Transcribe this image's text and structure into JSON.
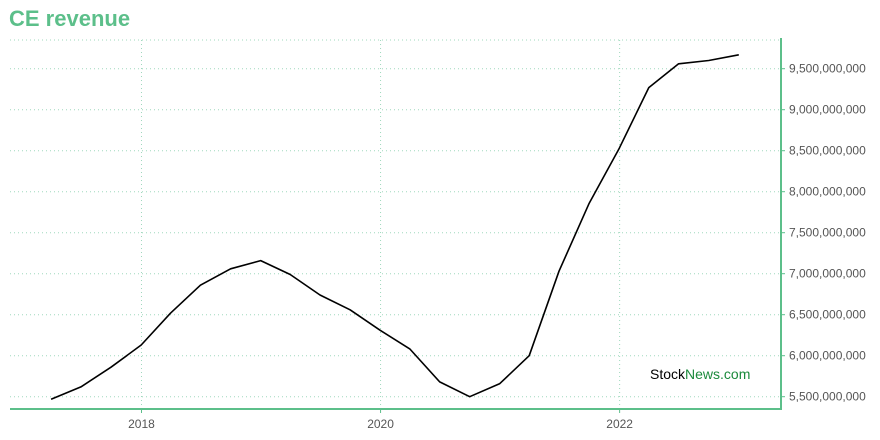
{
  "title": "CE revenue",
  "watermark": {
    "part1": "Stock",
    "part2": "News",
    "part3": ".com"
  },
  "colors": {
    "accent": "#5cbf8a",
    "line": "#000000",
    "grid": "#9fd8bd",
    "watermark_green": "#1b8a3c"
  },
  "chart_data": {
    "type": "line",
    "title": "CE revenue",
    "xlabel": "",
    "ylabel": "",
    "xlim": [
      2016.9,
      2023.35
    ],
    "ylim": [
      5350000000,
      9850000000
    ],
    "x_ticks": [
      2018,
      2020,
      2022
    ],
    "x_tick_labels": [
      "2018",
      "2020",
      "2022"
    ],
    "y_ticks": [
      5500000000,
      6000000000,
      6500000000,
      7000000000,
      7500000000,
      8000000000,
      8500000000,
      9000000000,
      9500000000
    ],
    "y_tick_labels": [
      "5,500,000,000",
      "6,000,000,000",
      "6,500,000,000",
      "7,000,000,000",
      "7,500,000,000",
      "8,000,000,000",
      "8,500,000,000",
      "9,000,000,000",
      "9,500,000,000"
    ],
    "grid": true,
    "y_axis_side": "right",
    "series": [
      {
        "x": [
          "2017-03-31",
          "2017-06-30",
          "2017-09-30",
          "2017-12-31",
          "2018-03-31",
          "2018-06-30",
          "2018-09-30",
          "2018-12-31",
          "2019-03-31",
          "2019-06-30",
          "2019-09-30",
          "2019-12-31",
          "2020-03-31",
          "2020-06-30",
          "2020-09-30",
          "2020-12-31",
          "2021-03-31",
          "2021-06-30",
          "2021-09-30",
          "2021-12-31",
          "2022-03-31",
          "2022-06-30",
          "2022-09-30",
          "2022-12-31"
        ],
        "values": [
          5470000000,
          5620000000,
          5860000000,
          6130000000,
          6520000000,
          6860000000,
          7060000000,
          7160000000,
          6990000000,
          6740000000,
          6560000000,
          6310000000,
          6080000000,
          5680000000,
          5500000000,
          5660000000,
          6000000000,
          7030000000,
          7860000000,
          8530000000,
          9270000000,
          9560000000,
          9600000000,
          9670000000
        ]
      }
    ]
  }
}
